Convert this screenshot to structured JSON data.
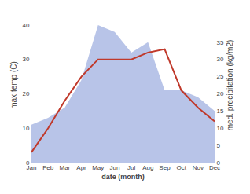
{
  "chart_data": {
    "type": "line",
    "categories": [
      "Jan",
      "Feb",
      "Mar",
      "Apr",
      "May",
      "Jun",
      "Jul",
      "Aug",
      "Sep",
      "Oct",
      "Nov",
      "Dec"
    ],
    "xlabel": "date (month)",
    "ylabel": "max temp (C)",
    "y2label": "med. precipitation (kg/m2)",
    "ylim": [
      0,
      45
    ],
    "yticks": [
      0,
      10,
      20,
      30,
      40
    ],
    "y2lim": [
      0,
      45
    ],
    "y2ticks": [
      0,
      5,
      10,
      15,
      20,
      25,
      30,
      35
    ],
    "grid": false,
    "series": [
      {
        "type": "area",
        "color": "#b8c4e8",
        "values": [
          11,
          13,
          16,
          24,
          40,
          38,
          32,
          35,
          21,
          21,
          19,
          15
        ]
      },
      {
        "type": "line",
        "color": "#c0392b",
        "values": [
          3,
          10,
          18,
          25,
          30,
          30,
          30,
          32,
          33,
          21,
          16,
          12
        ]
      }
    ]
  }
}
